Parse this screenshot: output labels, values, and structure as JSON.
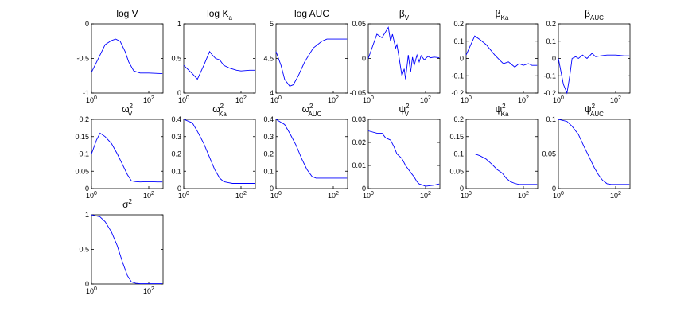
{
  "figure": {
    "x_ticks": [
      {
        "base": "10",
        "exp": "0"
      },
      {
        "base": "10",
        "exp": "2"
      }
    ],
    "x_range_log10": [
      0,
      2.5
    ]
  },
  "chart_data": [
    {
      "type": "line",
      "title": "log V",
      "title_sup": "",
      "title_sub": "",
      "ylim": [
        -1,
        0
      ],
      "yticks": [
        "0",
        "-0.5",
        "-1"
      ],
      "series": [
        {
          "name": "log V",
          "x": [
            1,
            2,
            3,
            5,
            7,
            10,
            15,
            20,
            30,
            50,
            100,
            300
          ],
          "values": [
            -0.7,
            -0.45,
            -0.3,
            -0.24,
            -0.22,
            -0.25,
            -0.4,
            -0.55,
            -0.68,
            -0.71,
            -0.71,
            -0.72
          ]
        }
      ]
    },
    {
      "type": "line",
      "title": "log K",
      "title_sup": "",
      "title_sub": "a",
      "ylim": [
        0,
        1
      ],
      "yticks": [
        "1",
        "0.5",
        "0"
      ],
      "series": [
        {
          "name": "log Ka",
          "x": [
            1,
            2,
            3,
            5,
            8,
            10,
            13,
            18,
            25,
            40,
            70,
            100,
            200,
            300
          ],
          "values": [
            0.4,
            0.28,
            0.2,
            0.4,
            0.6,
            0.55,
            0.5,
            0.48,
            0.4,
            0.36,
            0.33,
            0.32,
            0.33,
            0.33
          ]
        }
      ]
    },
    {
      "type": "line",
      "title": "log AUC",
      "title_sup": "",
      "title_sub": "",
      "ylim": [
        4,
        5
      ],
      "yticks": [
        "5",
        "4.5",
        "4"
      ],
      "series": [
        {
          "name": "log AUC",
          "x": [
            1,
            1.5,
            2,
            3,
            4,
            6,
            10,
            20,
            40,
            60,
            100,
            300
          ],
          "values": [
            4.6,
            4.4,
            4.2,
            4.1,
            4.12,
            4.25,
            4.45,
            4.65,
            4.75,
            4.78,
            4.78,
            4.78
          ]
        }
      ]
    },
    {
      "type": "line",
      "title": "β",
      "title_sup": "",
      "title_sub": "V",
      "ylim": [
        -0.05,
        0.05
      ],
      "yticks": [
        "0.05",
        "0",
        "-0.05"
      ],
      "series": [
        {
          "name": "beta V",
          "x": [
            1,
            2,
            3,
            5,
            6,
            7,
            9,
            10,
            12,
            15,
            18,
            20,
            25,
            30,
            35,
            40,
            50,
            60,
            70,
            90,
            120,
            150,
            200,
            300
          ],
          "values": [
            0.0,
            0.035,
            0.03,
            0.045,
            0.025,
            0.035,
            0.015,
            0.02,
            0.0,
            -0.025,
            -0.015,
            -0.03,
            0.005,
            -0.02,
            0.002,
            -0.01,
            0.005,
            -0.005,
            0.004,
            -0.002,
            0.003,
            0.001,
            0.002,
            0.001
          ]
        }
      ]
    },
    {
      "type": "line",
      "title": "β",
      "title_sup": "",
      "title_sub": "Ka",
      "ylim": [
        -0.2,
        0.2
      ],
      "yticks": [
        "0.2",
        "0.1",
        "0",
        "-0.1",
        "-0.2"
      ],
      "series": [
        {
          "name": "beta Ka",
          "x": [
            1,
            2,
            3,
            5,
            10,
            15,
            20,
            30,
            50,
            70,
            100,
            150,
            200,
            300
          ],
          "values": [
            0.02,
            0.13,
            0.11,
            0.08,
            0.02,
            -0.01,
            -0.03,
            -0.02,
            -0.05,
            -0.03,
            -0.04,
            -0.03,
            -0.04,
            -0.04
          ]
        }
      ]
    },
    {
      "type": "line",
      "title": "β",
      "title_sup": "",
      "title_sub": "AUC",
      "ylim": [
        -0.2,
        0.2
      ],
      "yticks": [
        "0.2",
        "0.1",
        "0",
        "-0.1",
        "-0.2"
      ],
      "series": [
        {
          "name": "beta AUC",
          "x": [
            1,
            1.5,
            2,
            2.5,
            3,
            4,
            5,
            7,
            10,
            15,
            20,
            30,
            50,
            100,
            200,
            300
          ],
          "values": [
            0.0,
            -0.15,
            -0.2,
            -0.1,
            0.0,
            0.01,
            0.0,
            0.02,
            0.0,
            0.03,
            0.01,
            0.015,
            0.02,
            0.02,
            0.015,
            0.015
          ]
        }
      ]
    },
    {
      "type": "line",
      "title": "ω",
      "title_sup": "2",
      "title_sub": "V",
      "ylim": [
        0,
        0.2
      ],
      "yticks": [
        "0.2",
        "0.15",
        "0.1",
        "0.05",
        "0"
      ],
      "series": [
        {
          "name": "omega2 V",
          "x": [
            1,
            1.5,
            2,
            3,
            5,
            8,
            12,
            18,
            25,
            35,
            50,
            100,
            200,
            300
          ],
          "values": [
            0.1,
            0.14,
            0.16,
            0.15,
            0.13,
            0.1,
            0.07,
            0.04,
            0.022,
            0.02,
            0.019,
            0.02,
            0.019,
            0.019
          ]
        }
      ]
    },
    {
      "type": "line",
      "title": "ω",
      "title_sup": "2",
      "title_sub": "Ka",
      "ylim": [
        0,
        0.4
      ],
      "yticks": [
        "0.4",
        "0.3",
        "0.2",
        "0.1",
        "0"
      ],
      "series": [
        {
          "name": "omega2 Ka",
          "x": [
            1,
            2,
            3,
            5,
            8,
            12,
            18,
            25,
            35,
            50,
            100,
            200,
            300
          ],
          "values": [
            0.4,
            0.38,
            0.33,
            0.26,
            0.18,
            0.11,
            0.06,
            0.04,
            0.035,
            0.03,
            0.03,
            0.03,
            0.03
          ]
        }
      ]
    },
    {
      "type": "line",
      "title": "ω",
      "title_sup": "2",
      "title_sub": "AUC",
      "ylim": [
        0,
        0.4
      ],
      "yticks": [
        "0.4",
        "0.3",
        "0.2",
        "0.1",
        "0"
      ],
      "series": [
        {
          "name": "omega2 AUC",
          "x": [
            1,
            2,
            3,
            5,
            8,
            12,
            18,
            25,
            35,
            50,
            100,
            200,
            300
          ],
          "values": [
            0.4,
            0.37,
            0.32,
            0.25,
            0.17,
            0.11,
            0.07,
            0.06,
            0.06,
            0.06,
            0.06,
            0.06,
            0.06
          ]
        }
      ]
    },
    {
      "type": "line",
      "title": "ψ",
      "title_sup": "2",
      "title_sub": "V",
      "ylim": [
        0,
        0.03
      ],
      "yticks": [
        "0.03",
        "0.02",
        "0.01",
        "0"
      ],
      "series": [
        {
          "name": "psi2 V",
          "x": [
            1,
            2,
            3,
            4,
            6,
            8,
            10,
            15,
            20,
            30,
            40,
            50,
            60,
            80,
            100,
            200,
            300
          ],
          "values": [
            0.025,
            0.024,
            0.024,
            0.022,
            0.021,
            0.018,
            0.015,
            0.013,
            0.01,
            0.007,
            0.005,
            0.003,
            0.002,
            0.0015,
            0.001,
            0.0015,
            0.002
          ]
        }
      ]
    },
    {
      "type": "line",
      "title": "ψ",
      "title_sup": "2",
      "title_sub": "Ka",
      "ylim": [
        0,
        0.2
      ],
      "yticks": [
        "0.2",
        "0.15",
        "0.1",
        "0.05",
        "0"
      ],
      "series": [
        {
          "name": "psi2 Ka",
          "x": [
            1,
            2,
            3,
            5,
            8,
            12,
            18,
            25,
            35,
            50,
            70,
            100,
            200,
            300
          ],
          "values": [
            0.1,
            0.1,
            0.095,
            0.085,
            0.07,
            0.055,
            0.045,
            0.03,
            0.02,
            0.015,
            0.012,
            0.012,
            0.012,
            0.012
          ]
        }
      ]
    },
    {
      "type": "line",
      "title": "ψ",
      "title_sup": "2",
      "title_sub": "AUC",
      "ylim": [
        0,
        0.1
      ],
      "yticks": [
        "0.1",
        "0.05",
        "0"
      ],
      "series": [
        {
          "name": "psi2 AUC",
          "x": [
            1,
            2,
            3,
            5,
            8,
            12,
            18,
            25,
            35,
            50,
            70,
            100,
            200,
            300
          ],
          "values": [
            0.1,
            0.097,
            0.09,
            0.078,
            0.06,
            0.045,
            0.03,
            0.02,
            0.012,
            0.007,
            0.006,
            0.006,
            0.006,
            0.006
          ]
        }
      ]
    },
    {
      "type": "line",
      "title": "σ",
      "title_sup": "2",
      "title_sub": "",
      "ylim": [
        0,
        1
      ],
      "yticks": [
        "1",
        "0.5",
        "0"
      ],
      "series": [
        {
          "name": "sigma2",
          "x": [
            1,
            2,
            3,
            5,
            8,
            12,
            18,
            25,
            35,
            50,
            100,
            300
          ],
          "values": [
            1.0,
            0.97,
            0.9,
            0.75,
            0.55,
            0.32,
            0.12,
            0.03,
            0.01,
            0.005,
            0.005,
            0.005
          ]
        }
      ]
    }
  ]
}
